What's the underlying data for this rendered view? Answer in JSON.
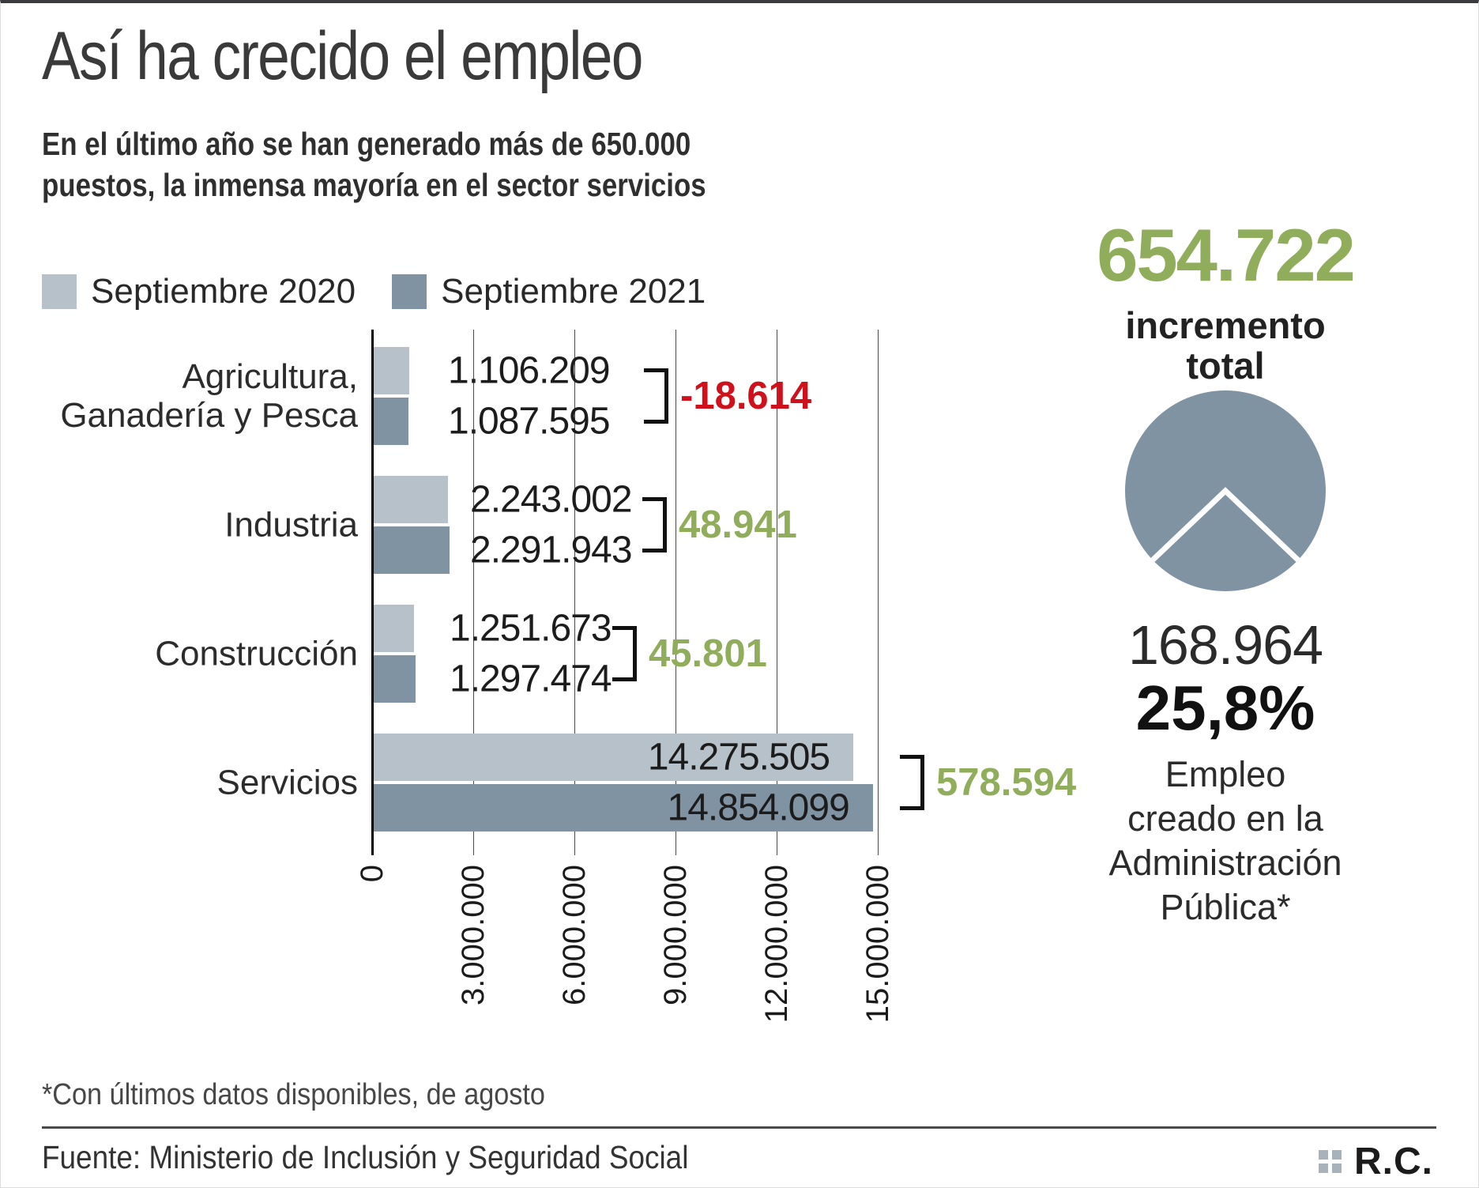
{
  "header": {
    "title": "Así ha crecido el empleo",
    "subtitle": "En el último año se han generado más de 650.000\npuestos, la inmensa mayoría en el sector servicios"
  },
  "legend": [
    {
      "label": "Septiembre 2020",
      "color": "#b6c1c9"
    },
    {
      "label": "Septiembre 2021",
      "color": "#8093a2"
    }
  ],
  "colors": {
    "bar_2020": "#b6c1c9",
    "bar_2021": "#8093a2",
    "positive_green": "#8fad5a",
    "negative_red": "#d0111b",
    "text_dark": "#1c1c1c"
  },
  "chart_data": {
    "type": "bar",
    "orientation": "horizontal",
    "title": "Así ha crecido el empleo",
    "categories": [
      "Agricultura,\nGanadería y Pesca",
      "Industria",
      "Construcción",
      "Servicios"
    ],
    "series": [
      {
        "name": "Septiembre 2020",
        "color": "#b6c1c9",
        "values": [
          1106209,
          2243002,
          1251673,
          14275505
        ],
        "value_labels": [
          "1.106.209",
          "2.243.002",
          "1.251.673",
          "14.275.505"
        ]
      },
      {
        "name": "Septiembre 2021",
        "color": "#8093a2",
        "values": [
          1087595,
          2291943,
          1297474,
          14854099
        ],
        "value_labels": [
          "1.087.595",
          "2.291.943",
          "1.297.474",
          "14.854.099"
        ]
      }
    ],
    "changes": [
      {
        "value": -18614,
        "label": "-18.614",
        "color": "#d0111b"
      },
      {
        "value": 48941,
        "label": "48.941",
        "color": "#8fad5a"
      },
      {
        "value": 45801,
        "label": "45.801",
        "color": "#8fad5a"
      },
      {
        "value": 578594,
        "label": "578.594",
        "color": "#8fad5a"
      }
    ],
    "xlim": [
      0,
      15000000
    ],
    "x_tick_values": [
      0,
      3000000,
      6000000,
      9000000,
      12000000,
      15000000
    ],
    "x_tick_labels": [
      "0",
      "3.000.000",
      "6.000.000",
      "9.000.000",
      "12.000.000",
      "15.000.000"
    ],
    "grid": true,
    "legend_position": "top-left"
  },
  "summary": {
    "total_number": "654.722",
    "total_caption": "incremento\ntotal",
    "pie": {
      "fraction": 0.258,
      "color": "#8093a2"
    },
    "value": "168.964",
    "percent": "25,8%",
    "caption": "Empleo\ncreado en la\nAdministración\nPública*"
  },
  "footer": {
    "note": "*Con últimos datos disponibles, de agosto",
    "source": "Fuente: Ministerio de Inclusión y Seguridad Social",
    "logo_text": "R.C."
  }
}
